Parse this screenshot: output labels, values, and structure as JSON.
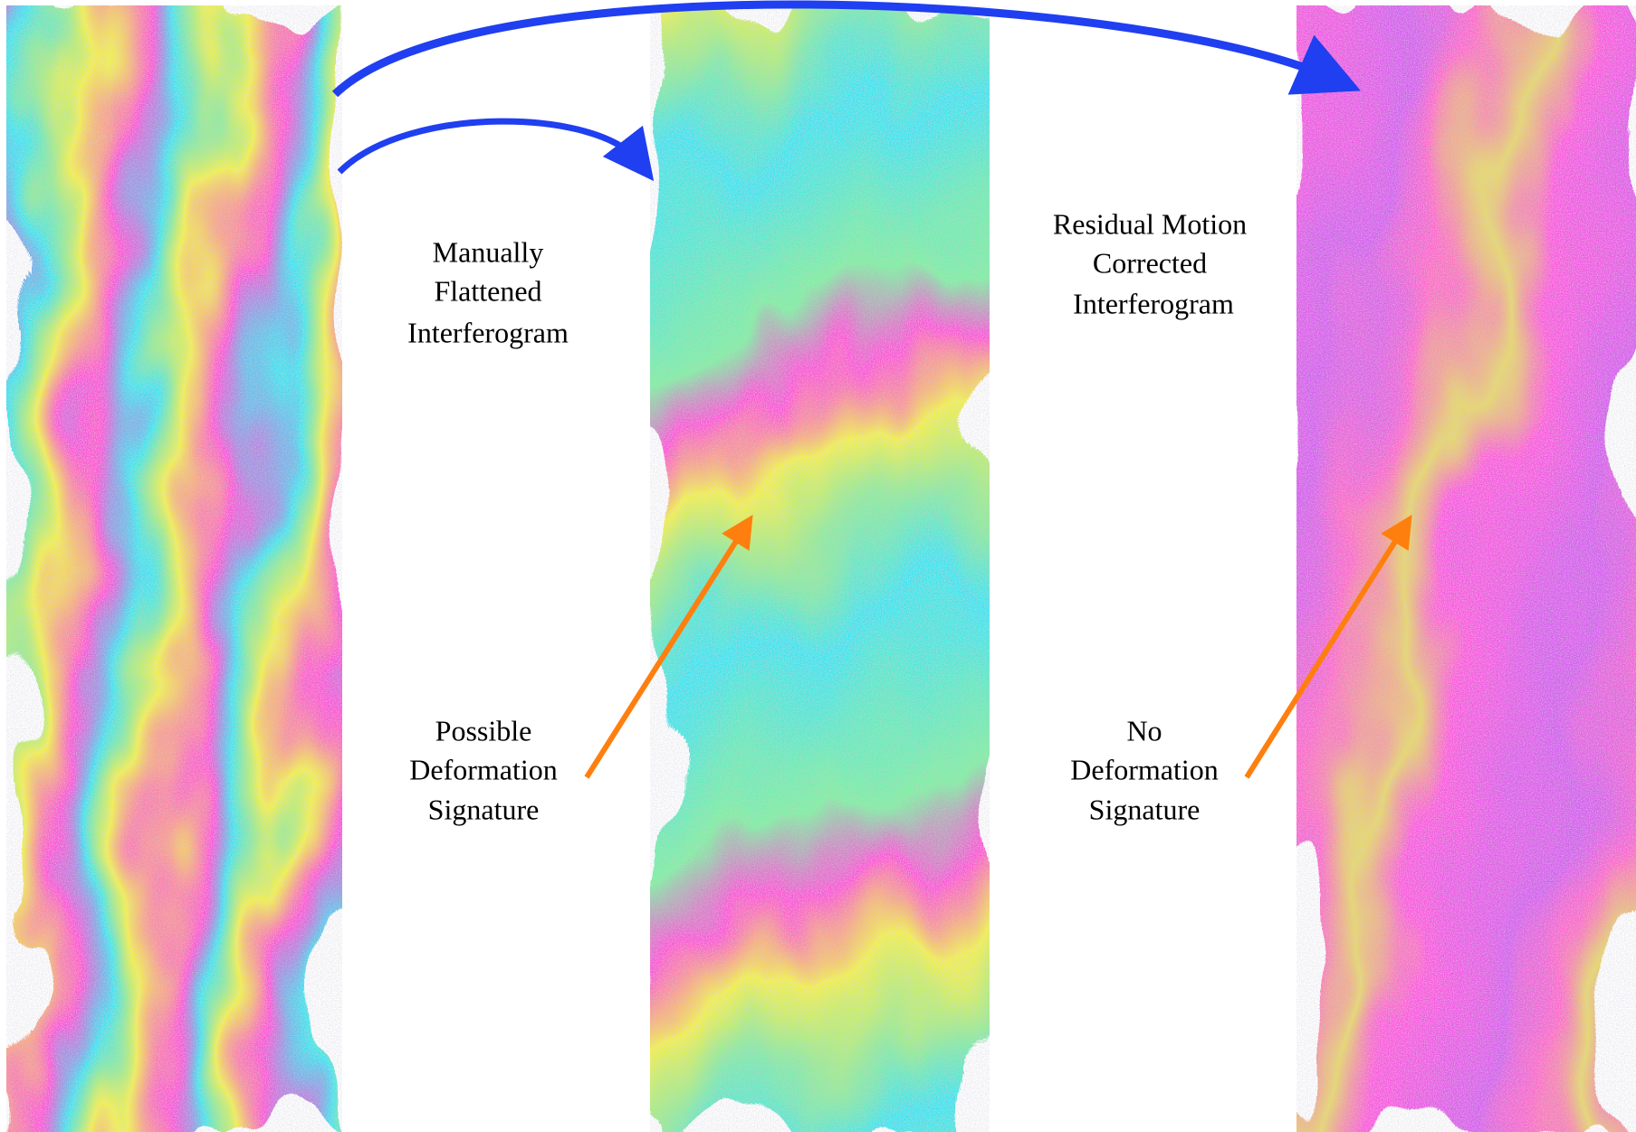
{
  "labels": [
    {
      "lines": [
        "Manually",
        "Flattened",
        "Interferogram"
      ]
    },
    {
      "lines": [
        "Residual Motion",
        "Corrected",
        "Interferogram"
      ]
    },
    {
      "lines": [
        "Possible",
        "Deformation",
        "Signature"
      ]
    },
    {
      "lines": [
        "No",
        "Deformation",
        "Signature"
      ]
    }
  ]
}
